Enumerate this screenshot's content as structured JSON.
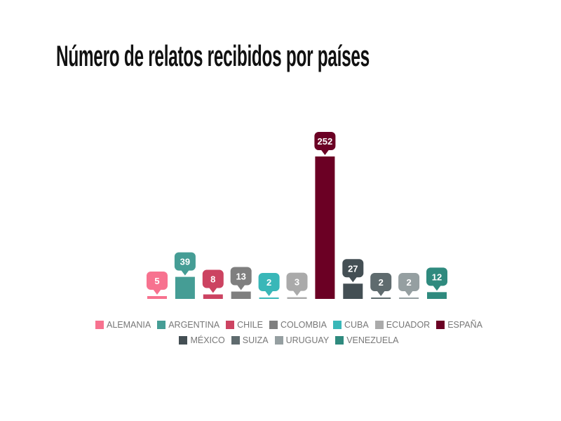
{
  "chart_data": {
    "type": "bar",
    "title": "Número de relatos recibidos por países",
    "xlabel": "",
    "ylabel": "",
    "ylim": [
      0,
      252
    ],
    "grid": false,
    "legend_position": "bottom",
    "categories": [
      "ALEMANIA",
      "ARGENTINA",
      "CHILE",
      "COLOMBIA",
      "CUBA",
      "ECUADOR",
      "ESPAÑA",
      "MÉXICO",
      "SUIZA",
      "URUGUAY",
      "VENEZUELA"
    ],
    "values": [
      5,
      39,
      8,
      13,
      2,
      3,
      252,
      27,
      2,
      2,
      12
    ],
    "colors": [
      "#f7728f",
      "#459d95",
      "#cc4361",
      "#7f7f7f",
      "#39b7b8",
      "#aaaaaa",
      "#6b0024",
      "#444f54",
      "#5f6b6e",
      "#959fa1",
      "#2f8a7e"
    ]
  }
}
